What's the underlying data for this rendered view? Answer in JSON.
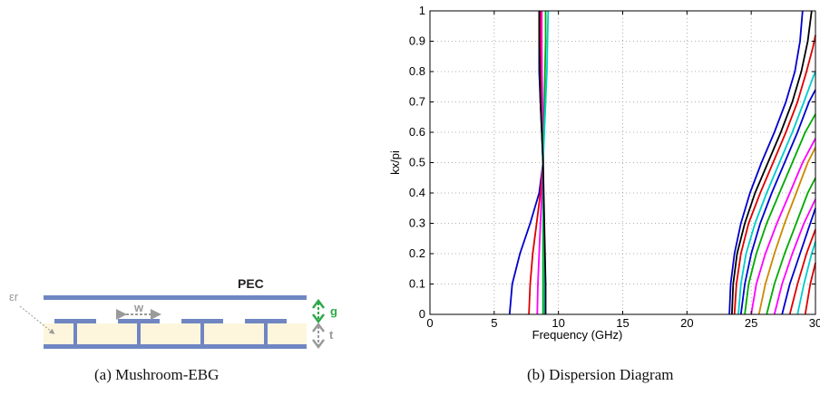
{
  "figure_a": {
    "caption": "(a)  Mushroom-EBG",
    "labels": {
      "pec": "PEC",
      "eps": "εr",
      "w": "w",
      "g": "g",
      "t": "t"
    },
    "colors": {
      "plate": "#6f86c2",
      "substrate": "#fdf6dc",
      "g_arrow": "#2ea84a",
      "gray_arrow": "#9a9a9a"
    }
  },
  "figure_b": {
    "caption": "(b)  Dispersion Diagram"
  },
  "chart_data": {
    "type": "line",
    "title": "",
    "xlabel": "Frequency (GHz)",
    "ylabel": "kx/pi",
    "xlim": [
      0,
      30
    ],
    "ylim": [
      0,
      1
    ],
    "xticks": [
      0,
      5,
      10,
      15,
      20,
      25,
      30
    ],
    "yticks": [
      0,
      0.1,
      0.2,
      0.3,
      0.4,
      0.5,
      0.6,
      0.7,
      0.8,
      0.9,
      1
    ],
    "grid": true,
    "series": [
      {
        "color": "#0000cc",
        "x": [
          6.2,
          6.4,
          7.0,
          7.8,
          8.5,
          8.8,
          8.7,
          8.6,
          8.5,
          8.5,
          8.5
        ],
        "y": [
          0,
          0.1,
          0.2,
          0.3,
          0.4,
          0.5,
          0.6,
          0.7,
          0.8,
          0.9,
          1
        ]
      },
      {
        "color": "#dd0000",
        "x": [
          7.7,
          7.8,
          8.0,
          8.3,
          8.6,
          8.8,
          8.75,
          8.7,
          8.65,
          8.6,
          8.6
        ],
        "y": [
          0,
          0.1,
          0.2,
          0.3,
          0.4,
          0.5,
          0.6,
          0.7,
          0.8,
          0.9,
          1
        ]
      },
      {
        "color": "#ff00ff",
        "x": [
          8.35,
          8.4,
          8.5,
          8.6,
          8.7,
          8.8,
          8.8,
          8.75,
          8.72,
          8.7,
          8.7
        ],
        "y": [
          0,
          0.1,
          0.2,
          0.3,
          0.4,
          0.5,
          0.6,
          0.7,
          0.8,
          0.9,
          1
        ]
      },
      {
        "color": "#00aa00",
        "x": [
          8.8,
          8.8,
          8.8,
          8.8,
          8.8,
          8.8,
          8.85,
          8.9,
          8.95,
          9.0,
          9.0
        ],
        "y": [
          0,
          0.1,
          0.2,
          0.3,
          0.4,
          0.5,
          0.6,
          0.7,
          0.8,
          0.9,
          1
        ]
      },
      {
        "color": "#00cccc",
        "x": [
          8.9,
          8.9,
          8.9,
          8.85,
          8.82,
          8.8,
          8.9,
          9.0,
          9.1,
          9.15,
          9.2
        ],
        "y": [
          0,
          0.1,
          0.2,
          0.3,
          0.4,
          0.5,
          0.6,
          0.7,
          0.8,
          0.9,
          1
        ]
      },
      {
        "color": "#000000",
        "x": [
          9.0,
          9.0,
          8.95,
          8.9,
          8.85,
          8.8,
          8.7,
          8.6,
          8.55,
          8.5,
          8.5
        ],
        "y": [
          0,
          0.1,
          0.2,
          0.3,
          0.4,
          0.5,
          0.6,
          0.7,
          0.8,
          0.9,
          1
        ]
      },
      {
        "color": "#0000cc",
        "x": [
          23.3,
          23.4,
          23.7,
          24.2,
          24.9,
          25.8,
          26.8,
          27.7,
          28.4,
          28.8,
          29.0
        ],
        "y": [
          0,
          0.1,
          0.2,
          0.3,
          0.4,
          0.5,
          0.6,
          0.7,
          0.8,
          0.9,
          1
        ]
      },
      {
        "color": "#000000",
        "x": [
          23.5,
          23.6,
          23.9,
          24.5,
          25.3,
          26.3,
          27.3,
          28.2,
          28.9,
          29.4,
          29.7
        ],
        "y": [
          0,
          0.1,
          0.2,
          0.3,
          0.4,
          0.5,
          0.6,
          0.7,
          0.8,
          0.9,
          1
        ]
      },
      {
        "color": "#dd0000",
        "x": [
          23.7,
          23.85,
          24.2,
          24.8,
          25.7,
          26.7,
          27.7,
          28.6,
          29.3,
          29.8,
          30
        ],
        "y": [
          0,
          0.1,
          0.2,
          0.3,
          0.4,
          0.5,
          0.6,
          0.7,
          0.8,
          0.88,
          0.92
        ]
      },
      {
        "color": "#00cccc",
        "x": [
          24.0,
          24.2,
          24.6,
          25.3,
          26.2,
          27.2,
          28.2,
          29.1,
          29.8,
          30
        ],
        "y": [
          0,
          0.1,
          0.2,
          0.3,
          0.4,
          0.5,
          0.6,
          0.7,
          0.78,
          0.8
        ]
      },
      {
        "color": "#0000cc",
        "x": [
          24.2,
          24.5,
          25.0,
          25.7,
          26.6,
          27.6,
          28.6,
          29.5,
          30
        ],
        "y": [
          0,
          0.1,
          0.2,
          0.3,
          0.4,
          0.5,
          0.6,
          0.7,
          0.74
        ]
      },
      {
        "color": "#00aa00",
        "x": [
          24.5,
          24.8,
          25.4,
          26.2,
          27.2,
          28.2,
          29.2,
          30
        ],
        "y": [
          0,
          0.1,
          0.2,
          0.3,
          0.4,
          0.5,
          0.6,
          0.66
        ]
      },
      {
        "color": "#ff00ff",
        "x": [
          25.0,
          25.4,
          26.1,
          27.0,
          28.0,
          29.0,
          30
        ],
        "y": [
          0,
          0.1,
          0.2,
          0.3,
          0.4,
          0.5,
          0.58
        ]
      },
      {
        "color": "#cc8800",
        "x": [
          25.6,
          26.1,
          26.8,
          27.6,
          28.5,
          29.4,
          30
        ],
        "y": [
          0,
          0.1,
          0.2,
          0.3,
          0.4,
          0.5,
          0.55
        ]
      },
      {
        "color": "#00aa00",
        "x": [
          26.2,
          26.8,
          27.6,
          28.5,
          29.4,
          30
        ],
        "y": [
          0,
          0.1,
          0.2,
          0.3,
          0.4,
          0.45
        ]
      },
      {
        "color": "#ff00ff",
        "x": [
          26.8,
          27.4,
          28.2,
          29.1,
          30
        ],
        "y": [
          0,
          0.1,
          0.2,
          0.3,
          0.38
        ]
      },
      {
        "color": "#0000cc",
        "x": [
          27.4,
          28.0,
          28.8,
          29.6,
          30
        ],
        "y": [
          0,
          0.1,
          0.2,
          0.3,
          0.35
        ]
      },
      {
        "color": "#dd0000",
        "x": [
          28.0,
          28.6,
          29.3,
          30
        ],
        "y": [
          0,
          0.1,
          0.2,
          0.28
        ]
      },
      {
        "color": "#00cccc",
        "x": [
          28.6,
          29.1,
          29.7,
          30
        ],
        "y": [
          0,
          0.1,
          0.2,
          0.24
        ]
      },
      {
        "color": "#dd0000",
        "x": [
          29.2,
          29.6,
          30
        ],
        "y": [
          0,
          0.1,
          0.17
        ]
      }
    ]
  }
}
